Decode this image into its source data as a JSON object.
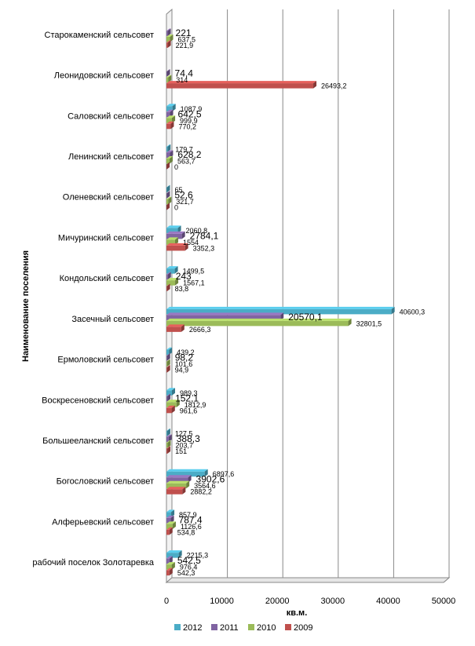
{
  "chart_data": {
    "type": "bar",
    "orientation": "horizontal",
    "style": "3d-clustered",
    "ylabel": "Наименование поселения",
    "xlabel": "кв.м.",
    "xlim": [
      0,
      50000
    ],
    "xticks": [
      "0",
      "10000",
      "20000",
      "30000",
      "40000",
      "50000"
    ],
    "grid": true,
    "legend_position": "bottom",
    "categories": [
      "Старокаменский сельсовет",
      "Леонидовский сельсовет",
      "Саловский сельсовет",
      "Ленинский сельсовет",
      "Оленевский сельсовет",
      "Мичуринский сельсовет",
      "Кондольский сельсовет",
      "Засечный сельсовет",
      "Ермоловский сельсовет",
      "Воскресеновский сельсовет",
      "Большееланский сельсовет",
      "Богословский сельсовет",
      "Алферьевский сельсовет",
      "рабочий поселок Золотаревка"
    ],
    "series": [
      {
        "name": "2012",
        "color": "#4BACC6",
        "values": [
          null,
          null,
          1087.9,
          179.7,
          65,
          2060.8,
          1499.5,
          40600.3,
          439.2,
          989.3,
          127.5,
          6897.6,
          857.9,
          2215.3
        ],
        "labels": [
          "",
          "",
          "1087,9",
          "179,7",
          "65",
          "2060,8",
          "1499,5",
          "40600,3",
          "439,2",
          "989,3",
          "127,5",
          "6897,6",
          "857,9",
          "2215,3"
        ]
      },
      {
        "name": "2011",
        "color": "#8064A2",
        "values": [
          221,
          74.4,
          642.5,
          628.2,
          52.6,
          2784.1,
          243,
          20570.1,
          98.2,
          152.1,
          388.3,
          3902.6,
          787.4,
          542.5
        ],
        "labels": [
          "221",
          "74,4",
          "642,5",
          "628,2",
          "52,6",
          "2784,1",
          "243",
          "20570,1",
          "98,2",
          "152,1",
          "388,3",
          "3902,6",
          "787,4",
          "542,5"
        ]
      },
      {
        "name": "2010",
        "color": "#9BBB59",
        "values": [
          637.5,
          314,
          999.9,
          563.7,
          321.7,
          1554,
          1567.1,
          32801.5,
          101.6,
          1812.9,
          203.7,
          3564.6,
          1126.6,
          976.4
        ],
        "labels": [
          "637,5",
          "314",
          "999,9",
          "563,7",
          "321,7",
          "1554",
          "1567,1",
          "32801,5",
          "101,6",
          "1812,9",
          "203,7",
          "3564,6",
          "1126,6",
          "976,4"
        ]
      },
      {
        "name": "2009",
        "color": "#C0504D",
        "values": [
          221.9,
          26493.2,
          770.2,
          0,
          0,
          3352.3,
          83.8,
          2666.3,
          94.9,
          961.6,
          151,
          2882.2,
          534.8,
          542.3
        ],
        "labels": [
          "221,9",
          "26493,2",
          "770,2",
          "0",
          "0",
          "3352,3",
          "83,8",
          "2666,3",
          "94,9",
          "961,6",
          "151",
          "2882,2",
          "534,8",
          "542,3"
        ]
      }
    ]
  }
}
